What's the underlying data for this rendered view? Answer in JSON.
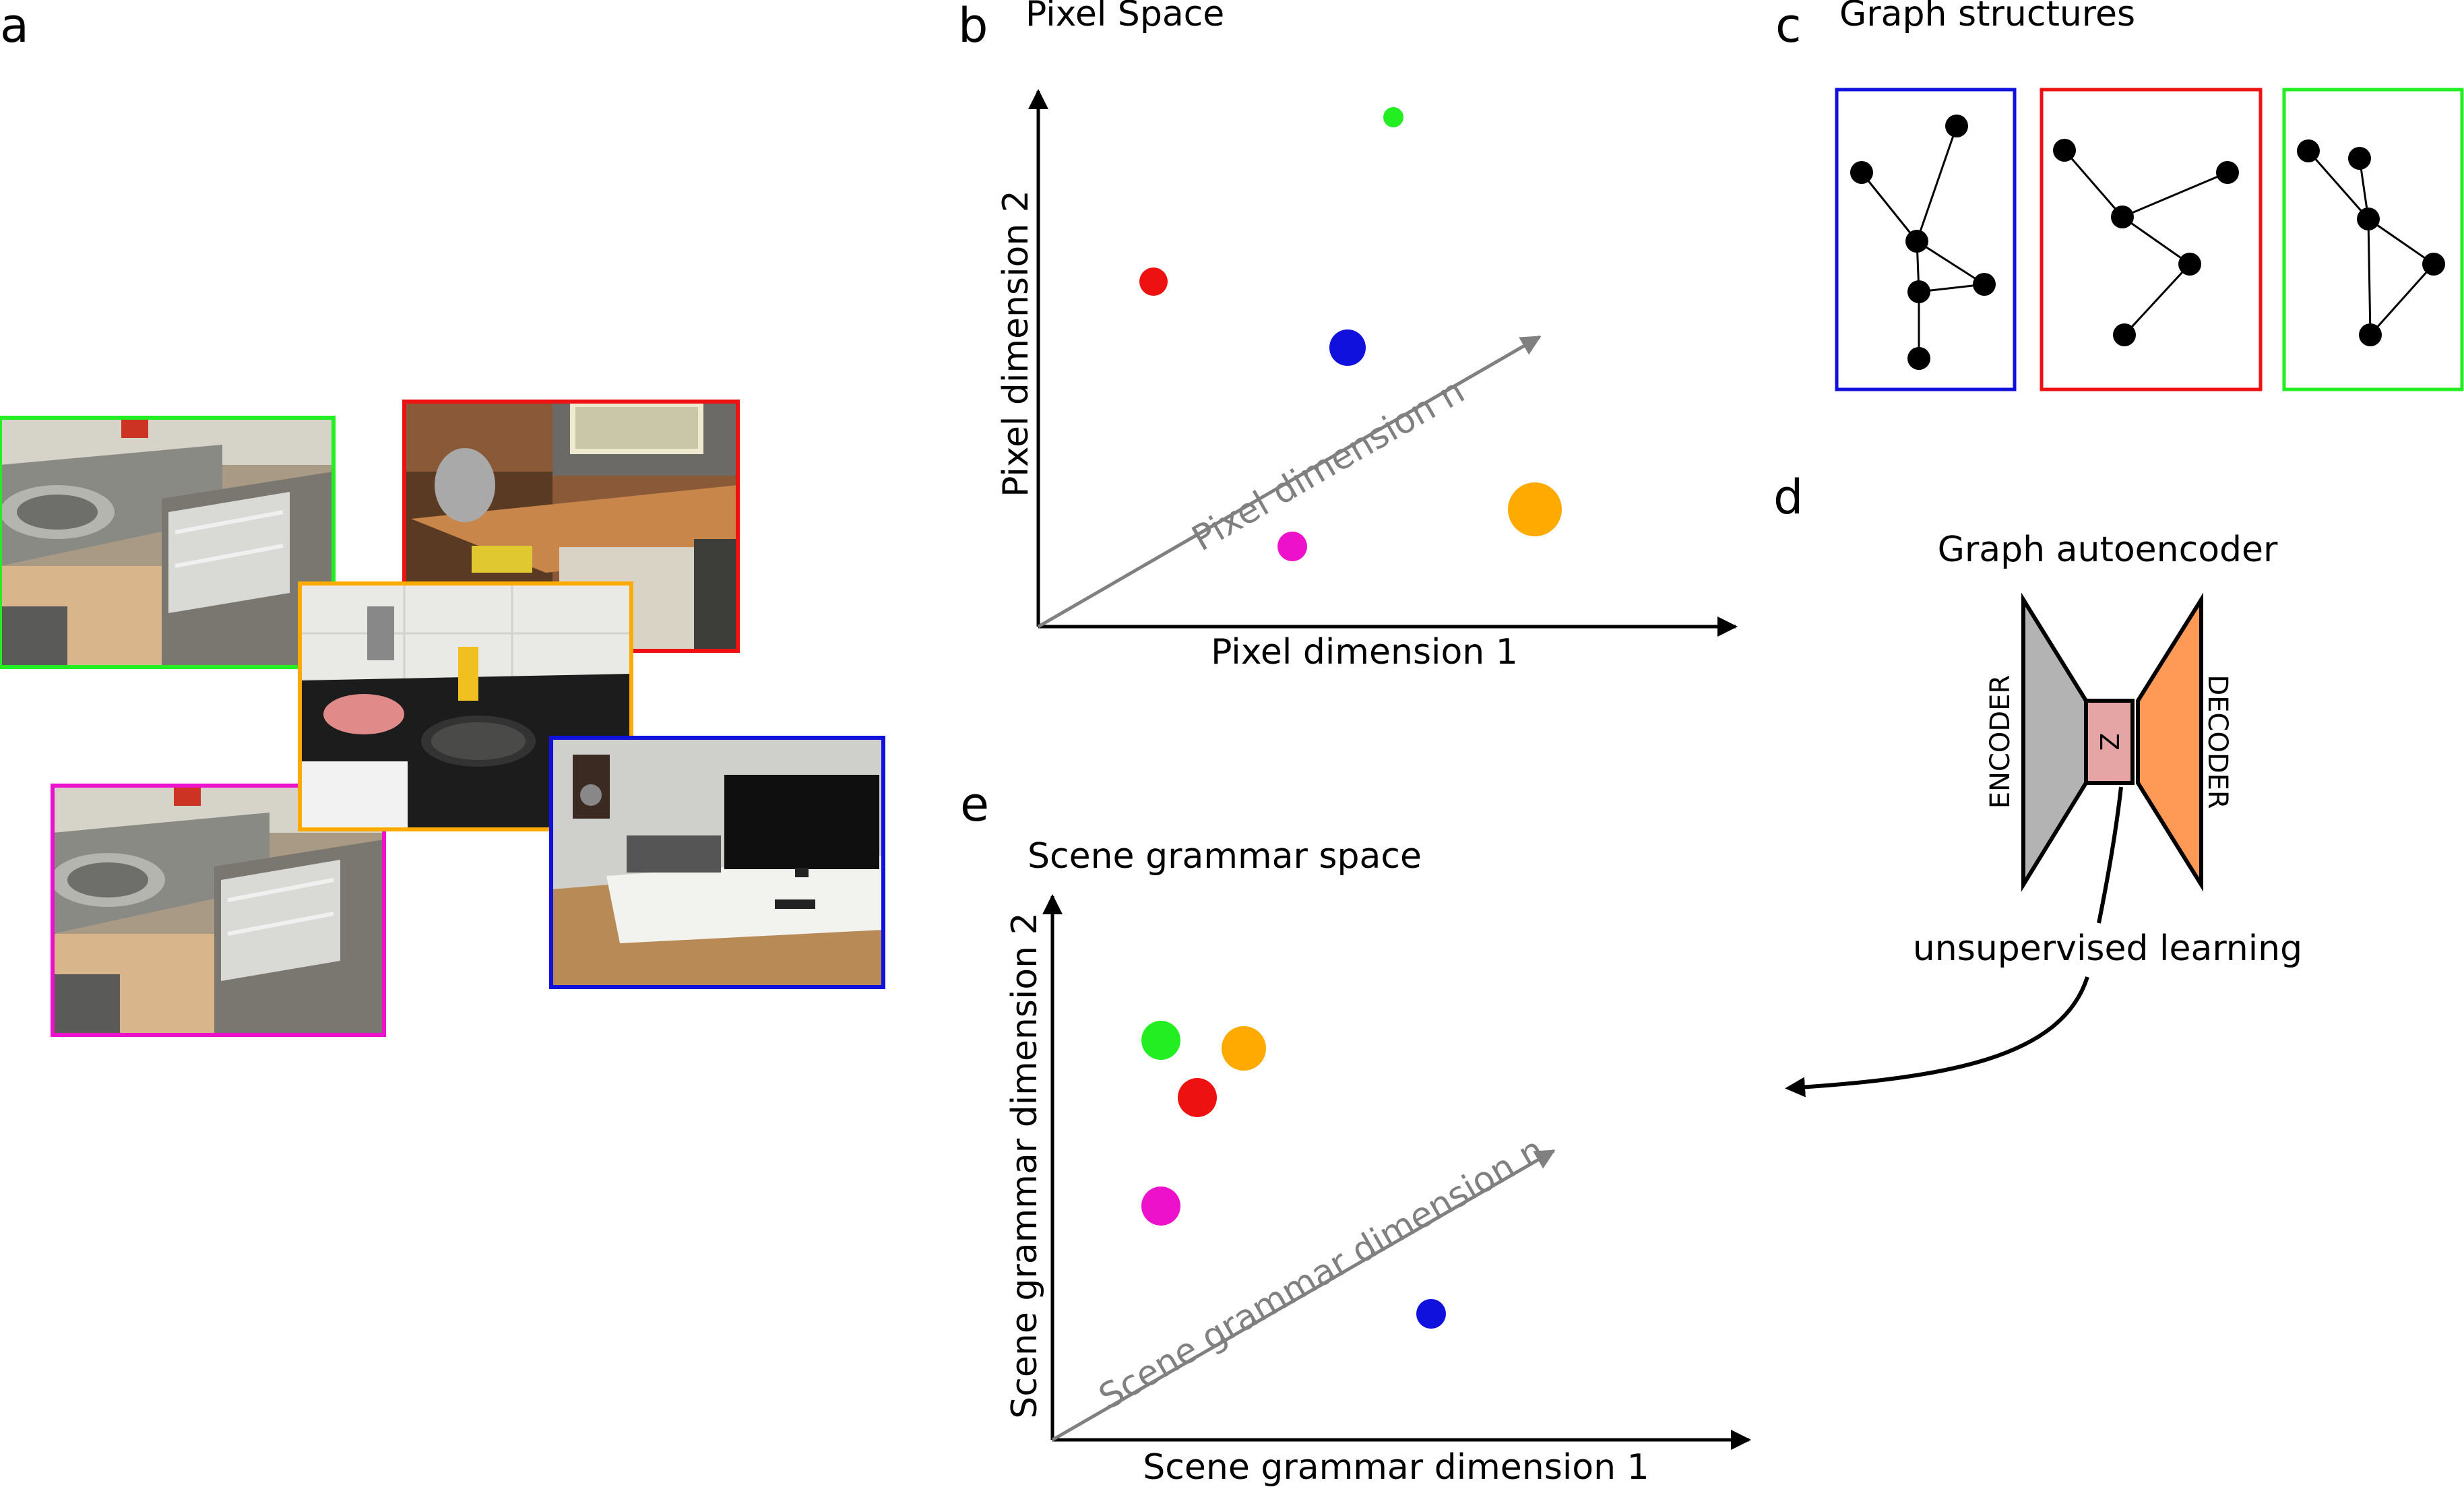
{
  "panels": {
    "a": {
      "letter": "a"
    },
    "b": {
      "letter": "b",
      "title": "Pixel Space",
      "xlabel": "Pixel dimension 1",
      "ylabel": "Pixel dimension 2",
      "zlabel": "Pixel dimension n"
    },
    "c": {
      "letter": "c",
      "title": "Graph structures"
    },
    "d": {
      "letter": "d",
      "title": "Graph autoencoder",
      "encoder": "ENCODER",
      "latent": "Z",
      "decoder": "DECODER",
      "caption": "unsupervised learning"
    },
    "e": {
      "letter": "e",
      "title": "Scene grammar space",
      "xlabel": "Scene grammar dimension 1",
      "ylabel": "Scene grammar dimension 2",
      "zlabel": "Scene grammar dimension n"
    }
  },
  "colors": {
    "green": "#22ee22",
    "red": "#ee1111",
    "blue": "#1111dd",
    "orange": "#ffaa00",
    "magenta": "#ee11cc",
    "encoder": "#b3b3b3",
    "decoder": "#ff9955",
    "latent": "#e6a5a5",
    "axis_gray": "#808080"
  },
  "photos": [
    {
      "scene": "kitchen sink and open dishwasher",
      "frame": "green"
    },
    {
      "scene": "kitchen counter with window",
      "frame": "red"
    },
    {
      "scene": "kitchen sink and open dishwasher",
      "frame": "magenta"
    },
    {
      "scene": "stove top with frying pan",
      "frame": "orange"
    },
    {
      "scene": "living room TV and turntable",
      "frame": "blue"
    }
  ],
  "graphs": [
    {
      "frame": "blue"
    },
    {
      "frame": "red"
    },
    {
      "frame": "green"
    }
  ]
}
